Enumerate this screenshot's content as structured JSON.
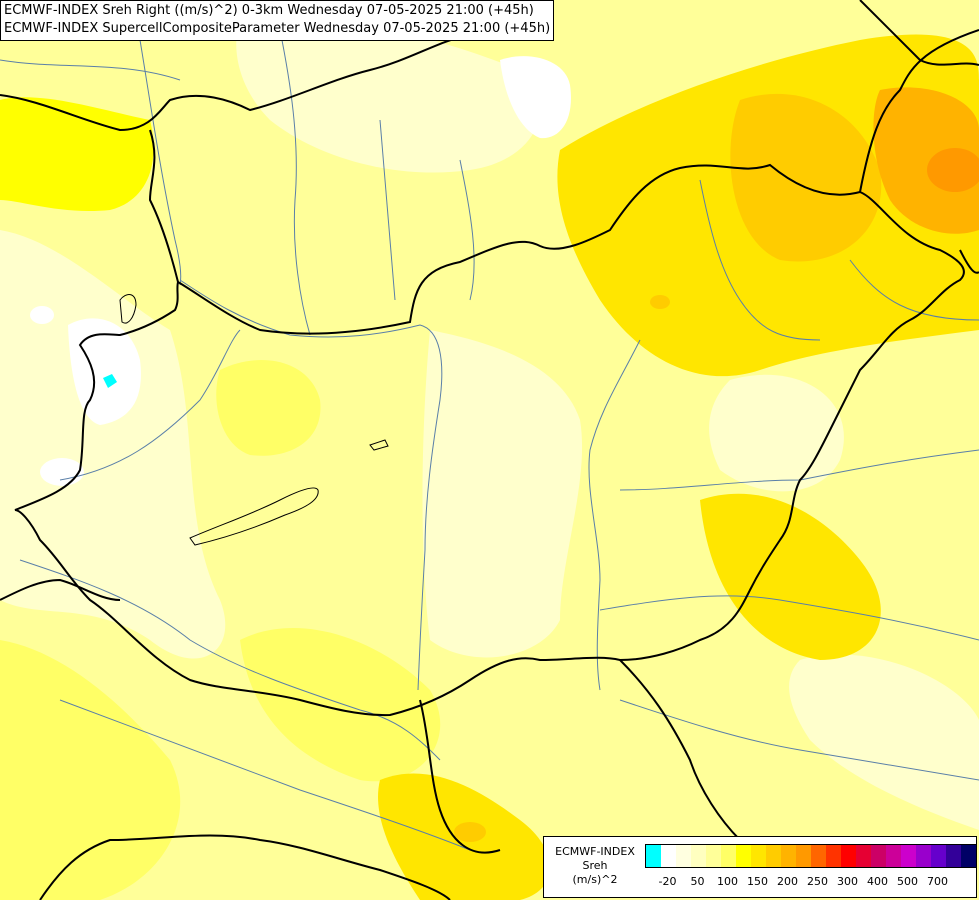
{
  "header": {
    "line1": "ECMWF-INDEX Sreh Right ((m/s)^2) 0-3km Wednesday 07-05-2025 21:00 (+45h)",
    "line2": "ECMWF-INDEX SupercellCompositeParameter Wednesday 07-05-2025 21:00 (+45h)"
  },
  "legend": {
    "line1": "ECMWF-INDEX",
    "line2": "Sreh",
    "line3": "(m/s)^2",
    "colors": [
      "#00ffff",
      "#ffffff",
      "#ffffe0",
      "#ffffc0",
      "#ffff99",
      "#ffff66",
      "#ffff00",
      "#ffe600",
      "#ffcc00",
      "#ffb300",
      "#ff9900",
      "#ff6600",
      "#ff3300",
      "#ff0000",
      "#e60033",
      "#cc0066",
      "#cc0099",
      "#cc00cc",
      "#9900cc",
      "#6600cc",
      "#330099",
      "#000066"
    ],
    "ticks": [
      {
        "label": "-20",
        "index": 1
      },
      {
        "label": "50",
        "index": 3
      },
      {
        "label": "100",
        "index": 5
      },
      {
        "label": "150",
        "index": 7
      },
      {
        "label": "200",
        "index": 9
      },
      {
        "label": "250",
        "index": 11
      },
      {
        "label": "300",
        "index": 13
      },
      {
        "label": "400",
        "index": 15
      },
      {
        "label": "500",
        "index": 17
      },
      {
        "label": "700",
        "index": 19
      }
    ]
  },
  "map": {
    "background_color": "#ffff99",
    "border_color": "#000000",
    "river_color": "#5a7fa8"
  }
}
